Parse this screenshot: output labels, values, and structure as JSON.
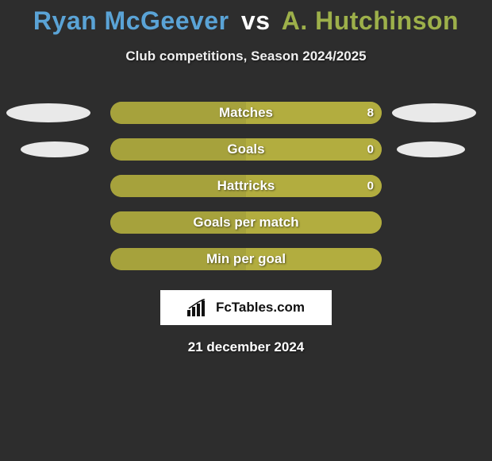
{
  "header": {
    "player1": "Ryan McGeever",
    "vs": "vs",
    "player2": "A. Hutchinson",
    "subtitle": "Club competitions, Season 2024/2025",
    "title_color_p1": "#5aa3d6",
    "title_color_vs": "#ffffff",
    "title_color_p2": "#9db04a"
  },
  "chart": {
    "bar_color_left": "#a6a23c",
    "bar_color_right": "#b2ad3f",
    "track_bg": "#a6a23c",
    "rows": [
      {
        "label": "Matches",
        "value": "8",
        "left_pct": 50,
        "right_pct": 50,
        "show_value": true,
        "side_ellipses": "large"
      },
      {
        "label": "Goals",
        "value": "0",
        "left_pct": 50,
        "right_pct": 50,
        "show_value": true,
        "side_ellipses": "small"
      },
      {
        "label": "Hattricks",
        "value": "0",
        "left_pct": 50,
        "right_pct": 50,
        "show_value": true,
        "side_ellipses": "none"
      },
      {
        "label": "Goals per match",
        "value": "",
        "left_pct": 50,
        "right_pct": 50,
        "show_value": false,
        "side_ellipses": "none"
      },
      {
        "label": "Min per goal",
        "value": "",
        "left_pct": 50,
        "right_pct": 50,
        "show_value": false,
        "side_ellipses": "none"
      }
    ]
  },
  "branding": {
    "text": "FcTables.com"
  },
  "date": "21 december 2024",
  "colors": {
    "background": "#2d2d2d",
    "ellipse": "#e9e9e9"
  }
}
